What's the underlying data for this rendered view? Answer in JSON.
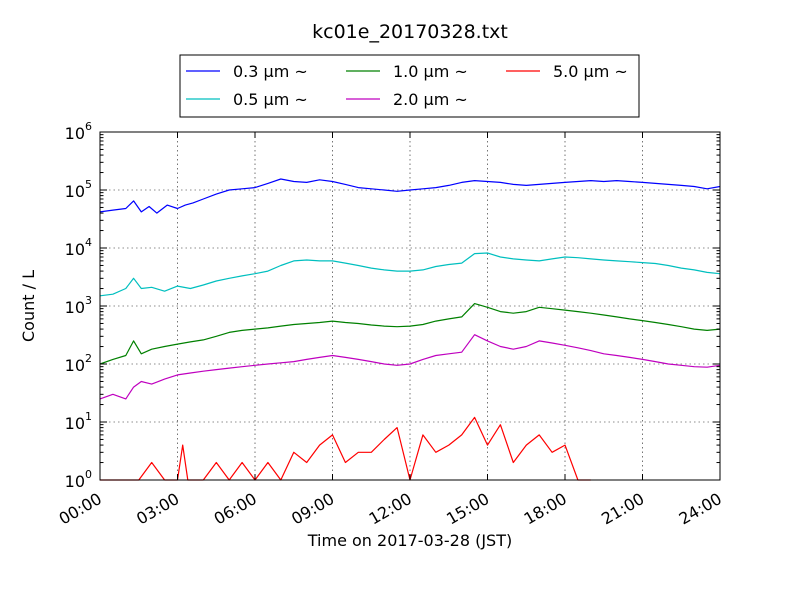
{
  "chart_data": {
    "type": "line",
    "title": "kc01e_20170328.txt",
    "xlabel": "Time on 2017-03-28 (JST)",
    "ylabel": "Count / L",
    "xlim": [
      0,
      24
    ],
    "ylim": [
      1,
      1000000
    ],
    "yscale": "log",
    "grid": true,
    "legend_position": "top-center",
    "x_tick_labels": [
      "00:00",
      "03:00",
      "06:00",
      "09:00",
      "12:00",
      "15:00",
      "18:00",
      "21:00",
      "24:00"
    ],
    "y_tick_labels": [
      {
        "base": "10",
        "exp": "0"
      },
      {
        "base": "10",
        "exp": "1"
      },
      {
        "base": "10",
        "exp": "2"
      },
      {
        "base": "10",
        "exp": "3"
      },
      {
        "base": "10",
        "exp": "4"
      },
      {
        "base": "10",
        "exp": "5"
      },
      {
        "base": "10",
        "exp": "6"
      }
    ],
    "series": [
      {
        "name": "0.3 μm ~",
        "color": "#0000ff",
        "x": [
          0,
          0.5,
          1,
          1.3,
          1.6,
          1.9,
          2.2,
          2.6,
          3,
          3.3,
          3.6,
          4,
          4.5,
          5,
          5.5,
          6,
          6.5,
          7,
          7.5,
          8,
          8.5,
          9,
          9.5,
          10,
          10.5,
          11,
          11.5,
          12,
          12.5,
          13,
          13.5,
          14,
          14.5,
          15,
          15.5,
          16,
          16.5,
          17,
          17.5,
          18,
          18.5,
          19,
          19.5,
          20,
          20.5,
          21,
          21.5,
          22,
          22.5,
          23,
          23.5,
          24
        ],
        "y": [
          42000,
          45000,
          48000,
          65000,
          42000,
          52000,
          40000,
          55000,
          48000,
          55000,
          60000,
          70000,
          85000,
          100000,
          105000,
          110000,
          130000,
          155000,
          140000,
          135000,
          150000,
          140000,
          125000,
          110000,
          105000,
          100000,
          95000,
          100000,
          105000,
          110000,
          120000,
          135000,
          145000,
          140000,
          135000,
          125000,
          120000,
          125000,
          130000,
          135000,
          140000,
          145000,
          140000,
          145000,
          140000,
          135000,
          130000,
          125000,
          120000,
          115000,
          105000,
          115000
        ]
      },
      {
        "name": "0.5 μm ~",
        "color": "#00bfbf",
        "x": [
          0,
          0.5,
          1,
          1.3,
          1.6,
          2,
          2.5,
          3,
          3.5,
          4,
          4.5,
          5,
          5.5,
          6,
          6.5,
          7,
          7.5,
          8,
          8.5,
          9,
          9.5,
          10,
          10.5,
          11,
          11.5,
          12,
          12.5,
          13,
          13.5,
          14,
          14.5,
          15,
          15.5,
          16,
          16.5,
          17,
          17.5,
          18,
          18.5,
          19,
          19.5,
          20,
          20.5,
          21,
          21.5,
          22,
          22.5,
          23,
          23.5,
          24
        ],
        "y": [
          1500,
          1600,
          2000,
          3000,
          2000,
          2100,
          1800,
          2200,
          2000,
          2300,
          2700,
          3000,
          3300,
          3600,
          4000,
          5000,
          6000,
          6200,
          6000,
          6000,
          5500,
          5000,
          4500,
          4200,
          4000,
          4000,
          4200,
          4800,
          5200,
          5500,
          8000,
          8200,
          7000,
          6500,
          6200,
          6000,
          6500,
          7000,
          6800,
          6500,
          6200,
          6000,
          5800,
          5600,
          5400,
          5000,
          4500,
          4200,
          3800,
          3600
        ]
      },
      {
        "name": "1.0 μm ~",
        "color": "#008000",
        "x": [
          0,
          0.5,
          1,
          1.3,
          1.6,
          2,
          2.5,
          3,
          3.5,
          4,
          4.5,
          5,
          5.5,
          6,
          6.5,
          7,
          7.5,
          8,
          8.5,
          9,
          9.5,
          10,
          10.5,
          11,
          11.5,
          12,
          12.5,
          13,
          13.5,
          14,
          14.5,
          15,
          15.5,
          16,
          16.5,
          17,
          17.5,
          18,
          18.5,
          19,
          19.5,
          20,
          20.5,
          21,
          21.5,
          22,
          22.5,
          23,
          23.5,
          24
        ],
        "y": [
          100,
          120,
          140,
          250,
          150,
          180,
          200,
          220,
          240,
          260,
          300,
          350,
          380,
          400,
          420,
          450,
          480,
          500,
          520,
          550,
          520,
          500,
          470,
          450,
          440,
          450,
          480,
          550,
          600,
          650,
          1100,
          950,
          800,
          750,
          800,
          950,
          900,
          850,
          800,
          750,
          700,
          650,
          600,
          560,
          520,
          480,
          440,
          400,
          380,
          400
        ]
      },
      {
        "name": "2.0 μm ~",
        "color": "#bf00bf",
        "x": [
          0,
          0.5,
          1,
          1.3,
          1.6,
          2,
          2.5,
          3,
          3.5,
          4,
          4.5,
          5,
          5.5,
          6,
          6.5,
          7,
          7.5,
          8,
          8.5,
          9,
          9.5,
          10,
          10.5,
          11,
          11.5,
          12,
          12.5,
          13,
          13.5,
          14,
          14.5,
          15,
          15.5,
          16,
          16.5,
          17,
          17.5,
          18,
          18.5,
          19,
          19.5,
          20,
          20.5,
          21,
          21.5,
          22,
          22.5,
          23,
          23.5,
          24
        ],
        "y": [
          25,
          30,
          25,
          40,
          50,
          45,
          55,
          65,
          70,
          75,
          80,
          85,
          90,
          95,
          100,
          105,
          110,
          120,
          130,
          140,
          130,
          120,
          110,
          100,
          95,
          100,
          120,
          140,
          150,
          160,
          320,
          250,
          200,
          180,
          200,
          250,
          230,
          210,
          190,
          170,
          150,
          140,
          130,
          120,
          110,
          100,
          95,
          90,
          88,
          95
        ]
      },
      {
        "name": "5.0 μm ~",
        "color": "#ff0000",
        "x": [
          0,
          1.5,
          2,
          2.5,
          3,
          3.2,
          3.4,
          4,
          4.5,
          5,
          5.5,
          6,
          6.5,
          7,
          7.5,
          8,
          8.5,
          9,
          9.5,
          10,
          10.5,
          11,
          11.5,
          12,
          12.5,
          13,
          13.5,
          14,
          14.5,
          15,
          15.5,
          16,
          16.5,
          17,
          17.5,
          18,
          18.5,
          19
        ],
        "y": [
          1,
          1,
          2,
          1,
          1,
          4,
          1,
          1,
          2,
          1,
          2,
          1,
          2,
          1,
          3,
          2,
          4,
          6,
          2,
          3,
          3,
          5,
          8,
          1,
          6,
          3,
          4,
          6,
          12,
          4,
          9,
          2,
          4,
          6,
          3,
          4,
          1,
          1
        ]
      }
    ]
  }
}
